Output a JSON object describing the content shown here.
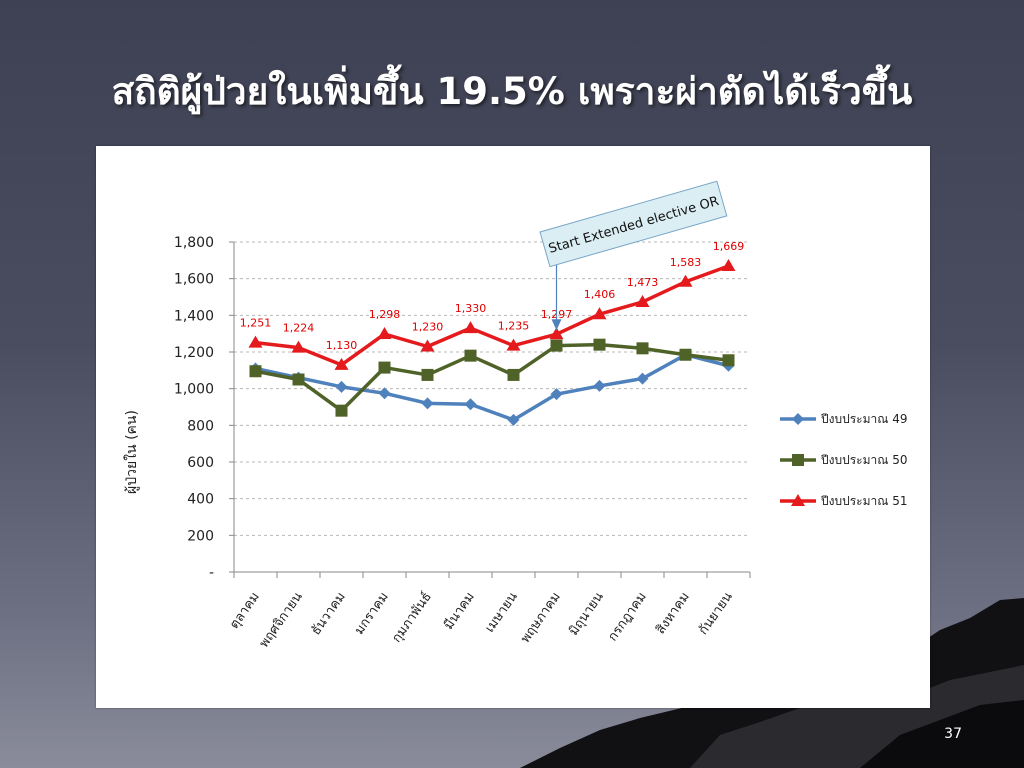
{
  "slide": {
    "title": "สถิติผู้ป่วยในเพิ่มขึ้น 19.5% เพราะผ่าตัดได้เร็วขึ้น",
    "page_number": "37"
  },
  "chart_data": {
    "type": "line",
    "categories": [
      "ตุลาคม",
      "พฤศจิกายน",
      "ธันวาคม",
      "มกราคม",
      "กุมภาพันธ์",
      "มีนาคม",
      "เมษายน",
      "พฤษภาคม",
      "มิถุนายน",
      "กรกฎาคม",
      "สิงหาคม",
      "กันยายน"
    ],
    "ylabel": "ผู้ป่วยใน (คน)",
    "xlabel": "",
    "ylim": [
      0,
      1800
    ],
    "y_ticks": [
      0,
      200,
      400,
      600,
      800,
      1000,
      1200,
      1400,
      1600,
      1800
    ],
    "y_tick_labels": [
      "-",
      "200",
      "400",
      "600",
      "800",
      "1,000",
      "1,200",
      "1,400",
      "1,600",
      "1,800"
    ],
    "grid": "horizontal dashed",
    "legend_position": "right",
    "series": [
      {
        "name": "ปีงบประมาณ 49",
        "color": "#4f81bd",
        "marker": "diamond",
        "values": [
          1110,
          1060,
          1010,
          975,
          920,
          915,
          830,
          970,
          1015,
          1055,
          1185,
          1125
        ]
      },
      {
        "name": "ปีงบประมาณ 50",
        "color": "#4f6228",
        "marker": "square",
        "values": [
          1095,
          1050,
          880,
          1115,
          1075,
          1180,
          1075,
          1235,
          1240,
          1220,
          1185,
          1155
        ]
      },
      {
        "name": "ปีงบประมาณ 51",
        "color": "#e41a1c",
        "marker": "triangle",
        "values": [
          1251,
          1224,
          1130,
          1298,
          1230,
          1330,
          1235,
          1297,
          1406,
          1473,
          1583,
          1669
        ],
        "data_labels": [
          "1,251",
          "1,224",
          "1,130",
          "1,298",
          "1,230",
          "1,330",
          "1,235",
          "1,297",
          "1,406",
          "1,473",
          "1,583",
          "1,669"
        ]
      }
    ],
    "annotation": {
      "text": "Start Extended  elective OR",
      "points_to_category": "พฤษภาคม"
    }
  }
}
